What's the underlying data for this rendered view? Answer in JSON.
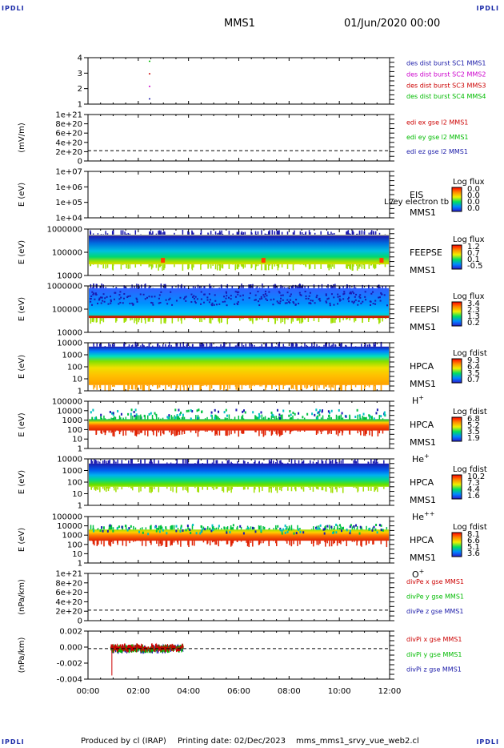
{
  "corner_label": "IPDLI",
  "header": {
    "spacecraft": "MMS1",
    "datetime": "01/Jun/2020 00:00"
  },
  "footer": {
    "produced_by": "Produced by cl (IRAP)",
    "printing_date": "Printing date: 02/Dec/2023",
    "script": "mms_mms1_srvy_vue_web2.cl"
  },
  "time_axis": {
    "ticks": [
      "00:00",
      "02:00",
      "04:00",
      "06:00",
      "08:00",
      "10:00",
      "12:00"
    ],
    "range_hours": [
      0,
      12
    ]
  },
  "colors": {
    "blue": "#1a1aa8",
    "red": "#cc0000",
    "green": "#00bb00",
    "magenta": "#cc00cc"
  },
  "chart_data": [
    {
      "type": "scatter",
      "panel": "burst",
      "ylabel": "",
      "y_ticks": [
        "1",
        "2",
        "3",
        "4"
      ],
      "ylim": [
        0.6,
        4.3
      ],
      "series": [
        {
          "name": "des dist burst SC1 MMS1",
          "color": "#1a1aa8",
          "x": [
            2.45
          ],
          "y": [
            1
          ]
        },
        {
          "name": "des dist burst SC2 MMS2",
          "color": "#cc00cc",
          "x": [
            2.45
          ],
          "y": [
            2
          ]
        },
        {
          "name": "des dist burst SC3 MMS3",
          "color": "#cc0000",
          "x": [
            2.45
          ],
          "y": [
            3
          ]
        },
        {
          "name": "des dist burst SC4 MMS4",
          "color": "#00bb00",
          "x": [
            2.45
          ],
          "y": [
            4
          ]
        }
      ]
    },
    {
      "type": "line",
      "panel": "edi",
      "ylabel": "(mV/m)",
      "y_ticks": [
        "0",
        "2e+20",
        "4e+20",
        "6e+20",
        "8e+20",
        "1e+21"
      ],
      "ylim": [
        -0.3,
        1.05
      ],
      "zero_line": true,
      "series": [
        {
          "name": "edi ex gse l2 MMS1",
          "color": "#cc0000"
        },
        {
          "name": "edi ey gse l2 MMS1",
          "color": "#00bb00"
        },
        {
          "name": "edi ez gse l2 MMS1",
          "color": "#1a1aa8"
        }
      ]
    },
    {
      "type": "heatmap",
      "panel": "eis",
      "ylabel": "E (eV)",
      "y_ticks": [
        "1e+04",
        "1e+05",
        "1e+06",
        "1e+07"
      ],
      "labels": [
        "EIS",
        "MMS1"
      ],
      "overlay_text": "Lvey electron tb",
      "colorbar": {
        "title": "Log flux",
        "values": [
          "0.0",
          "0.0",
          "0.0",
          "0.0"
        ]
      },
      "coverage": "none"
    },
    {
      "type": "heatmap",
      "panel": "feepse",
      "ylabel": "E (eV)",
      "y_ticks": [
        "10000",
        "100000",
        "1000000"
      ],
      "labels": [
        "FEEPSE",
        "MMS1"
      ],
      "colorbar": {
        "title": "Log flux",
        "values": [
          "1.2",
          "0.7",
          "0.1",
          "-0.5"
        ]
      },
      "coverage": [
        0,
        12
      ]
    },
    {
      "type": "heatmap",
      "panel": "feepsi",
      "ylabel": "E (eV)",
      "y_ticks": [
        "10000",
        "100000",
        "1000000"
      ],
      "labels": [
        "FEEPSI",
        "MMS1"
      ],
      "colorbar": {
        "title": "Log flux",
        "values": [
          "3.4",
          "2.3",
          "1.3",
          "0.2"
        ]
      },
      "coverage": [
        0,
        12
      ]
    },
    {
      "type": "heatmap",
      "panel": "hpca-h",
      "ylabel": "E (eV)",
      "y_ticks": [
        "1",
        "10",
        "100",
        "1000",
        "10000"
      ],
      "labels": [
        "HPCA",
        "MMS1",
        "H+"
      ],
      "colorbar": {
        "title": "Log fdist",
        "values": [
          "9.3",
          "6.4",
          "3.5",
          "0.7"
        ]
      },
      "coverage": [
        0,
        12
      ]
    },
    {
      "type": "heatmap",
      "panel": "hpca-he",
      "ylabel": "E (eV)",
      "y_ticks": [
        "1",
        "10",
        "100",
        "1000",
        "10000",
        "100000"
      ],
      "labels": [
        "HPCA",
        "MMS1",
        "He+"
      ],
      "colorbar": {
        "title": "Log fdist",
        "values": [
          "6.8",
          "5.2",
          "3.5",
          "1.9"
        ]
      },
      "coverage": [
        0,
        12
      ]
    },
    {
      "type": "heatmap",
      "panel": "hpca-hepp",
      "ylabel": "E (eV)",
      "y_ticks": [
        "1",
        "10",
        "100",
        "1000",
        "10000"
      ],
      "labels": [
        "HPCA",
        "MMS1",
        "He++"
      ],
      "colorbar": {
        "title": "Log fdist",
        "values": [
          "10.2",
          "7.3",
          "4.4",
          "1.6"
        ]
      },
      "coverage": [
        0,
        12
      ]
    },
    {
      "type": "heatmap",
      "panel": "hpca-o",
      "ylabel": "E (eV)",
      "y_ticks": [
        "1",
        "10",
        "100",
        "1000",
        "10000",
        "100000"
      ],
      "labels": [
        "HPCA",
        "MMS1",
        "O+"
      ],
      "colorbar": {
        "title": "Log fdist",
        "values": [
          "8.1",
          "6.6",
          "5.1",
          "3.6"
        ]
      },
      "coverage": [
        0,
        12
      ]
    },
    {
      "type": "line",
      "panel": "divpe",
      "ylabel": "(nPa/km)",
      "y_ticks": [
        "0",
        "2e+20",
        "4e+20",
        "6e+20",
        "8e+20",
        "1e+21"
      ],
      "ylim": [
        -0.3,
        1.05
      ],
      "zero_line": true,
      "series": [
        {
          "name": "divPe x gse MMS1",
          "color": "#cc0000"
        },
        {
          "name": "divPe y gse MMS1",
          "color": "#00bb00"
        },
        {
          "name": "divPe z gse MMS1",
          "color": "#1a1aa8"
        }
      ]
    },
    {
      "type": "line",
      "panel": "divpi",
      "ylabel": "(nPa/km)",
      "y_ticks": [
        "-0.004",
        "-0.002",
        "0.000",
        "0.002"
      ],
      "ylim": [
        -0.0042,
        0.0024
      ],
      "zero_line": true,
      "data_range_hours": [
        0.9,
        3.8
      ],
      "series": [
        {
          "name": "divPi x gse MMS1",
          "color": "#cc0000"
        },
        {
          "name": "divPi y gse MMS1",
          "color": "#00bb00"
        },
        {
          "name": "divPi z gse MMS1",
          "color": "#1a1aa8"
        }
      ]
    }
  ]
}
